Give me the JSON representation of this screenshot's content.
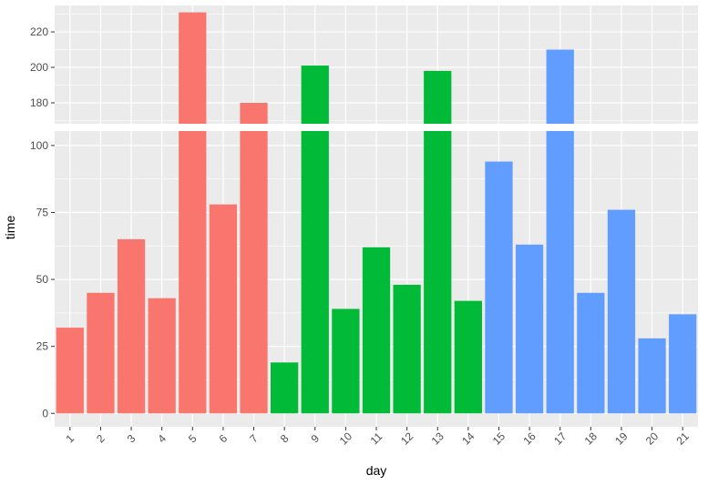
{
  "chart_data": {
    "type": "bar",
    "title": "",
    "xlabel": "day",
    "ylabel": "time",
    "categories": [
      "1",
      "2",
      "3",
      "4",
      "5",
      "6",
      "7",
      "8",
      "9",
      "10",
      "11",
      "12",
      "13",
      "14",
      "15",
      "16",
      "17",
      "18",
      "19",
      "20",
      "21"
    ],
    "values": [
      32,
      45,
      65,
      43,
      231,
      78,
      180,
      19,
      201,
      39,
      62,
      48,
      198,
      42,
      94,
      63,
      210,
      45,
      76,
      28,
      37
    ],
    "groups": [
      1,
      1,
      1,
      1,
      1,
      1,
      1,
      2,
      2,
      2,
      2,
      2,
      2,
      2,
      3,
      3,
      3,
      3,
      3,
      3,
      3
    ],
    "group_colors": {
      "1": "#F8766D",
      "2": "#00BA38",
      "3": "#619CFF"
    },
    "axis_break": true,
    "lower_panel": {
      "ylim": [
        -5,
        105.4
      ],
      "ticks": [
        0,
        25,
        50,
        75,
        100
      ]
    },
    "upper_panel": {
      "ylim": [
        168.2,
        234.9
      ],
      "ticks": [
        180,
        200,
        220
      ]
    },
    "grid": true,
    "legend": "none"
  }
}
